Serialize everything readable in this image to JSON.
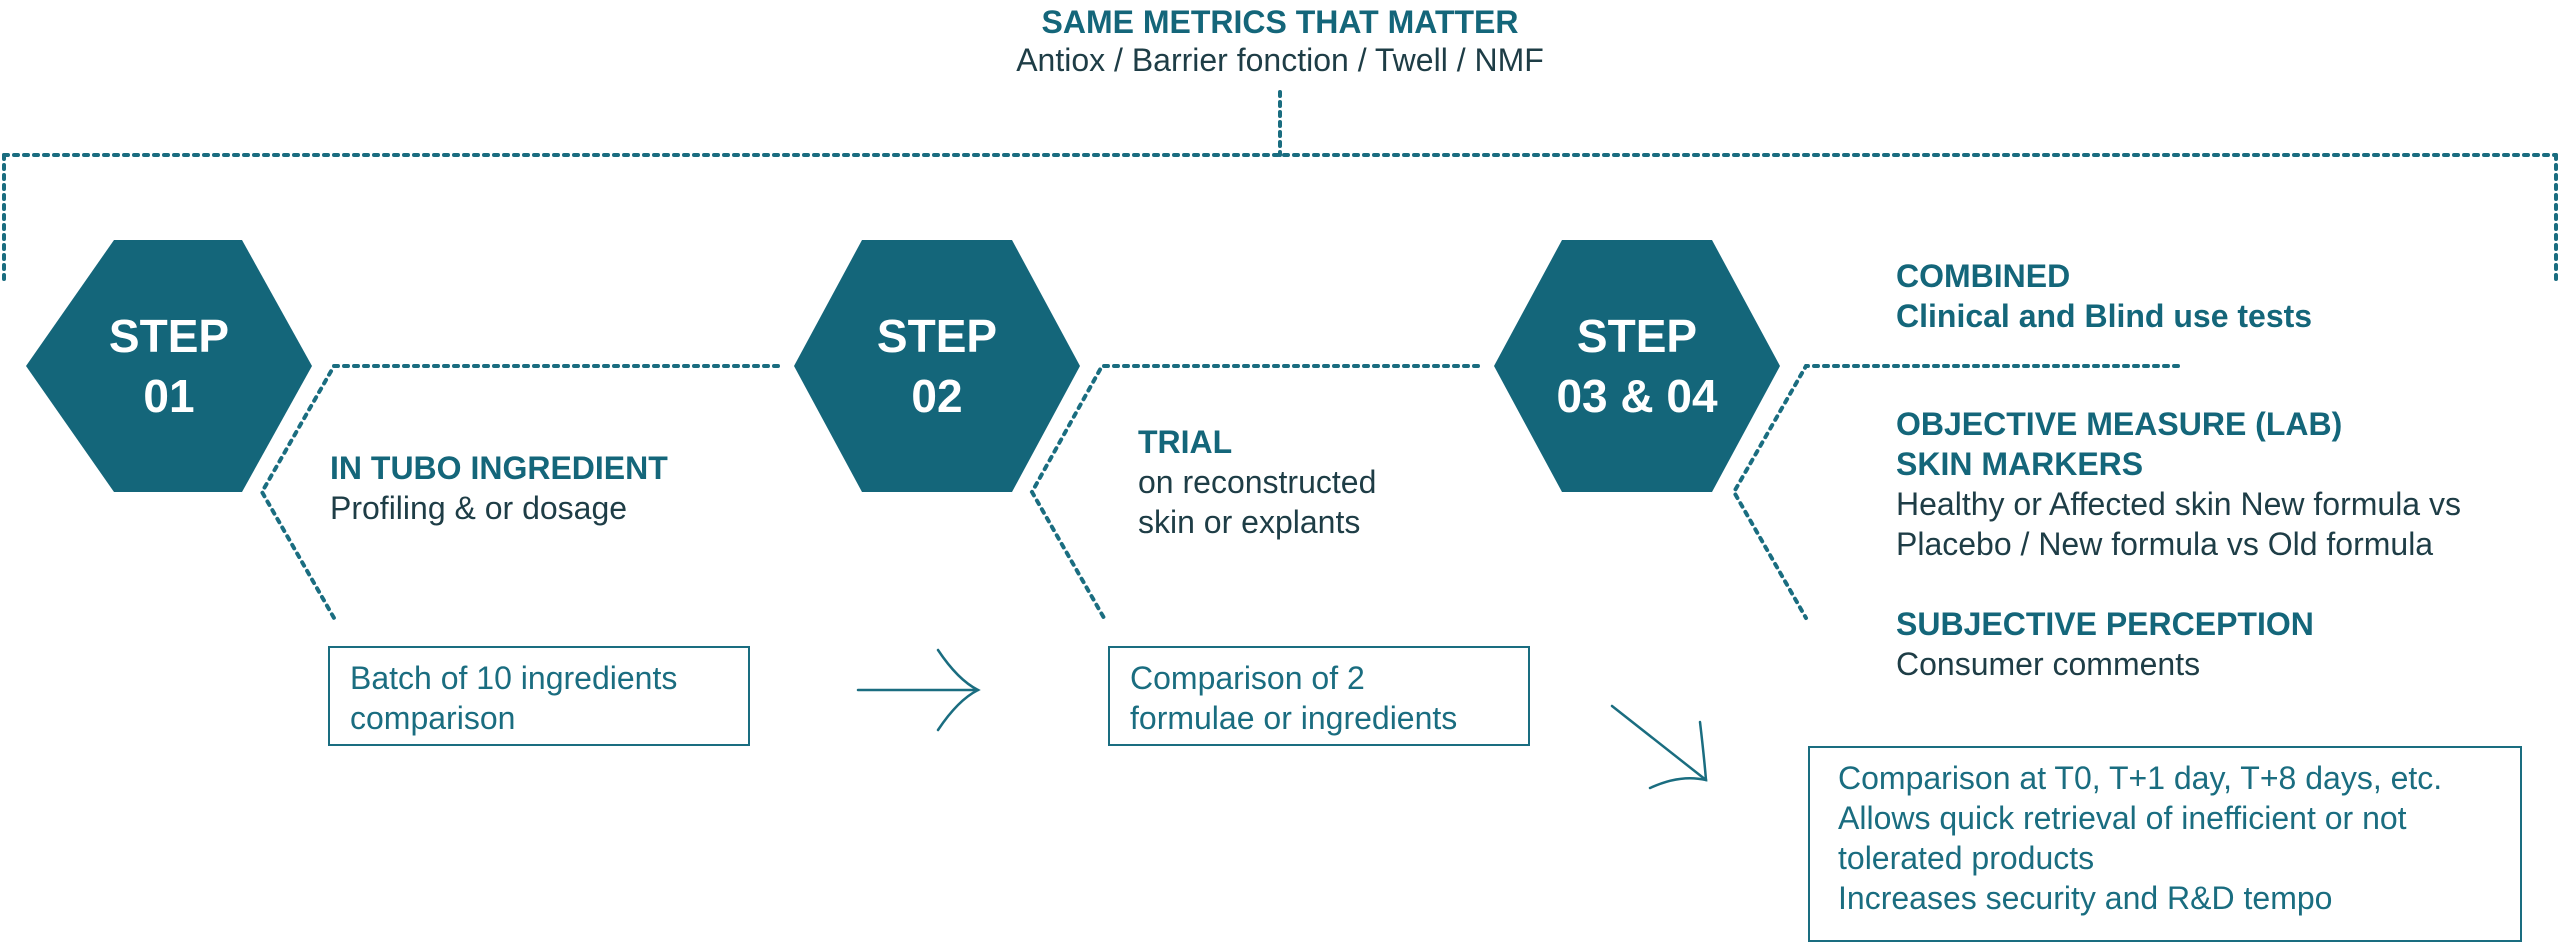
{
  "header": {
    "title": "SAME METRICS THAT MATTER",
    "subtitle": "Antiox / Barrier fonction / Twell / NMF"
  },
  "steps": [
    {
      "label_line1": "STEP",
      "label_line2": "01",
      "heading": "IN TUBO INGREDIENT",
      "description": "Profiling & or dosage",
      "box_text_line1": "Batch of 10 ingredients",
      "box_text_line2": "comparison"
    },
    {
      "label_line1": "STEP",
      "label_line2": "02",
      "heading": "TRIAL",
      "description_line1": "on reconstructed",
      "description_line2": "skin or explants",
      "box_text_line1": "Comparison of 2",
      "box_text_line2": "formulae or ingredients"
    },
    {
      "label_line1": "STEP",
      "label_line2": "03 & 04",
      "combined_heading_line1": "COMBINED",
      "combined_heading_line2": "Clinical and Blind use tests",
      "objective_heading_line1": "OBJECTIVE MEASURE (LAB)",
      "objective_heading_line2": "SKIN MARKERS",
      "objective_text_line1": "Healthy or Affected skin New formula vs",
      "objective_text_line2": "Placebo / New formula vs Old formula",
      "subjective_heading": "SUBJECTIVE PERCEPTION",
      "subjective_text": "Consumer comments",
      "box_lines": [
        "Comparison at T0, T+1 day, T+8 days, etc.",
        "Allows quick retrieval of inefficient or not",
        "tolerated products",
        "Increases security and R&D tempo"
      ]
    }
  ],
  "colors": {
    "hexagon": "#14667a",
    "accent": "#1a6d80",
    "text": "#1e3d46"
  }
}
